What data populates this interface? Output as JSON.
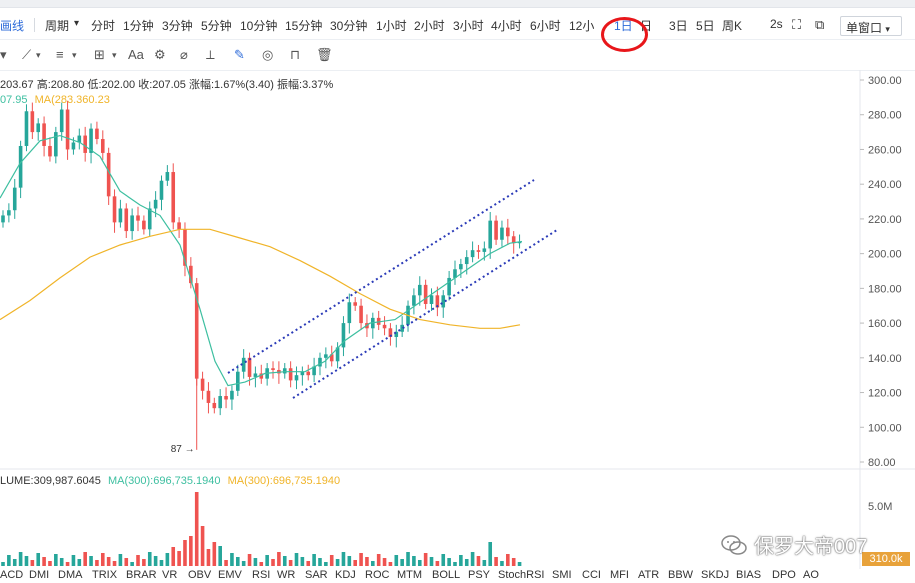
{
  "toolbar": {
    "left_label": "画线",
    "period_label": "周期",
    "intervals": [
      "分时",
      "1分钟",
      "3分钟",
      "5分钟",
      "10分钟",
      "15分钟",
      "30分钟",
      "1小时",
      "2小时",
      "3小时",
      "4小时",
      "6小时",
      "12小",
      "1日",
      "3日",
      "5日",
      "周K"
    ],
    "speed": "2s",
    "window_label": "单窗口",
    "active_interval": "1日"
  },
  "toolbar2": {
    "text_tool": "Aa"
  },
  "ohlc": "203.67  高:208.80  低:202.00  收:207.05  涨幅:1.67%(3.40)  振幅:3.37%",
  "ma_line": {
    "ma_a": "07.95",
    "ma_b": "MA(283.360.23"
  },
  "price_axis": [
    "300.00",
    "280.00",
    "260.00",
    "240.00",
    "220.00",
    "200.00",
    "180.00",
    "160.00",
    "140.00",
    "120.00",
    "100.00",
    "80.00"
  ],
  "min_marker": "87",
  "volume_legend": {
    "volume": "LUME:309,987.6045",
    "ma1": "MA(300):696,735.1940",
    "ma2": "MA(300):696,735.1940"
  },
  "volume_axis": [
    "5.0M"
  ],
  "volume_current": "310.0k",
  "indicators": [
    "ACD",
    "DMI",
    "DMA",
    "TRIX",
    "BRAR",
    "VR",
    "OBV",
    "EMV",
    "RSI",
    "WR",
    "SAR",
    "KDJ",
    "ROC",
    "MTM",
    "BOLL",
    "PSY",
    "StochRSI",
    "SMI",
    "CCI",
    "MFI",
    "ATR",
    "BBW",
    "SKDJ",
    "BIAS",
    "DPO",
    "AO"
  ],
  "watermark": "保罗大帝007",
  "colors": {
    "up": "#26a69a",
    "down": "#ef5350",
    "ma_fast": "#3dbfa0",
    "ma_slow": "#f0b429",
    "channel": "#2b3bb8",
    "active": "#2d6bd9",
    "highlight_circle": "#e8161a"
  }
}
